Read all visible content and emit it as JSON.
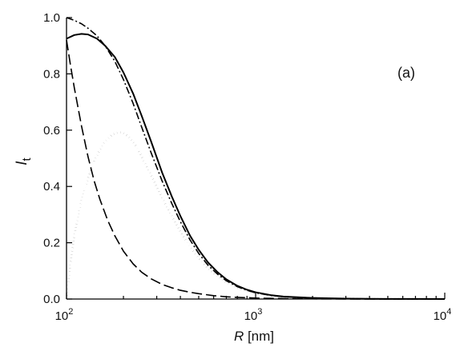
{
  "chart_data": {
    "type": "line",
    "panel_label": "(a)",
    "xlabel": {
      "symbol": "R",
      "unit": "[nm]"
    },
    "ylabel": {
      "symbol": "I",
      "subscript": "t"
    },
    "xscale": "log",
    "xlim": [
      100,
      10000
    ],
    "ylim": [
      0.0,
      1.0
    ],
    "x_ticks": [
      {
        "base": "10",
        "exp": "2"
      },
      {
        "base": "10",
        "exp": "3"
      },
      {
        "base": "10",
        "exp": "4"
      }
    ],
    "y_ticks": [
      "0.0",
      "0.2",
      "0.4",
      "0.6",
      "0.8",
      "1.0"
    ],
    "grid": false,
    "legend": "none",
    "series": [
      {
        "style": "solid",
        "x": [
          100,
          110,
          120,
          130,
          145,
          160,
          180,
          200,
          225,
          250,
          280,
          320,
          360,
          400,
          450,
          500,
          560,
          630,
          700,
          800,
          900,
          1000,
          1200,
          1400,
          1700,
          2000,
          2500,
          3000,
          4000,
          5000,
          7000,
          10000
        ],
        "y": [
          0.925,
          0.938,
          0.942,
          0.94,
          0.925,
          0.9,
          0.86,
          0.805,
          0.73,
          0.65,
          0.56,
          0.45,
          0.365,
          0.295,
          0.225,
          0.175,
          0.13,
          0.095,
          0.07,
          0.047,
          0.033,
          0.024,
          0.014,
          0.009,
          0.006,
          0.004,
          0.0025,
          0.0015,
          0.0008,
          0.0005,
          0.0002,
          0.0001
        ]
      },
      {
        "style": "dash-dot",
        "x": [
          100,
          110,
          120,
          130,
          145,
          160,
          180,
          200,
          225,
          250,
          280,
          320,
          360,
          400,
          450,
          500,
          560,
          630,
          700,
          800,
          900,
          1000,
          1200,
          1400,
          1700,
          2000,
          2500,
          3000,
          4000,
          5000,
          7000,
          10000
        ],
        "y": [
          1.0,
          0.99,
          0.978,
          0.962,
          0.935,
          0.9,
          0.845,
          0.78,
          0.695,
          0.61,
          0.52,
          0.42,
          0.34,
          0.275,
          0.21,
          0.162,
          0.12,
          0.088,
          0.065,
          0.044,
          0.031,
          0.022,
          0.013,
          0.008,
          0.005,
          0.0035,
          0.002,
          0.0013,
          0.0007,
          0.0004,
          0.0002,
          0.0001
        ]
      },
      {
        "style": "dashed",
        "x": [
          100,
          105,
          110,
          120,
          130,
          140,
          150,
          165,
          180,
          200,
          225,
          250,
          280,
          320,
          360,
          400,
          450,
          500,
          600,
          700,
          800,
          1000,
          1200,
          1500,
          2000,
          3000,
          5000,
          10000
        ],
        "y": [
          0.92,
          0.83,
          0.75,
          0.615,
          0.505,
          0.42,
          0.355,
          0.28,
          0.225,
          0.17,
          0.125,
          0.095,
          0.072,
          0.052,
          0.04,
          0.031,
          0.024,
          0.019,
          0.012,
          0.008,
          0.0058,
          0.0035,
          0.0022,
          0.0013,
          0.0007,
          0.0003,
          0.0001,
          0.0
        ]
      },
      {
        "style": "dotted",
        "x": [
          100,
          103,
          106,
          110,
          115,
          120,
          130,
          140,
          150,
          160,
          175,
          190,
          200,
          215,
          230,
          250,
          280,
          320,
          360,
          400,
          450,
          500,
          560,
          630,
          700,
          800,
          900,
          1000,
          1200,
          1500,
          2000,
          3000,
          5000,
          10000
        ],
        "y": [
          0.0,
          0.08,
          0.15,
          0.225,
          0.295,
          0.35,
          0.43,
          0.49,
          0.53,
          0.56,
          0.585,
          0.593,
          0.59,
          0.575,
          0.55,
          0.505,
          0.44,
          0.36,
          0.295,
          0.24,
          0.185,
          0.145,
          0.108,
          0.08,
          0.059,
          0.04,
          0.028,
          0.02,
          0.012,
          0.007,
          0.0035,
          0.0012,
          0.0004,
          0.0001
        ]
      }
    ]
  }
}
